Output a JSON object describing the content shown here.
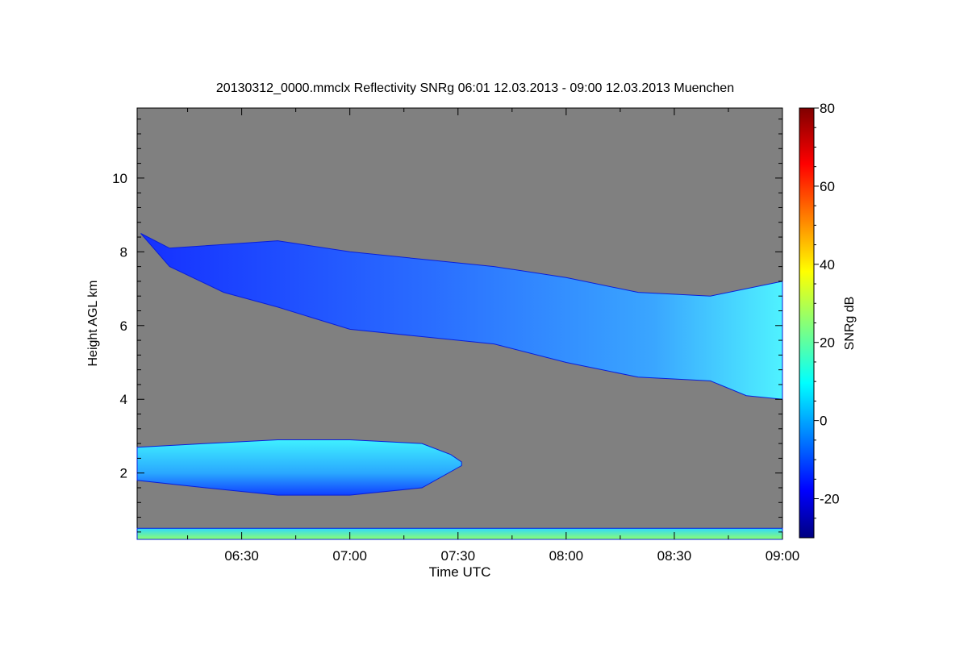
{
  "chart_data": {
    "type": "heatmap",
    "title": "20130312_0000.mmclx Reflectivity SNRg   06:01 12.03.2013 - 09:00 12.03.2013 Muenchen",
    "xlabel": "Time UTC",
    "ylabel": "Height AGL km",
    "x_ticks": [
      "06:30",
      "07:00",
      "07:30",
      "08:00",
      "08:30",
      "09:00"
    ],
    "x_tick_minutes": [
      390,
      420,
      450,
      480,
      510,
      540
    ],
    "xlim_minutes": [
      361,
      540
    ],
    "y_ticks": [
      "2",
      "4",
      "6",
      "8",
      "10"
    ],
    "y_tick_values": [
      2,
      4,
      6,
      8,
      10
    ],
    "ylim": [
      0.2,
      11.9
    ],
    "background_color": "#808080",
    "colorbar": {
      "label": "SNRg dB",
      "ticks": [
        "-20",
        "0",
        "20",
        "40",
        "60",
        "80"
      ],
      "tick_values": [
        -20,
        0,
        20,
        40,
        60,
        80
      ],
      "range": [
        -30,
        80
      ],
      "colormap": "jet"
    },
    "features": [
      {
        "name": "upper cloud layer",
        "top_km": [
          [
            362,
            8.5
          ],
          [
            370,
            8.1
          ],
          [
            385,
            8.2
          ],
          [
            400,
            8.3
          ],
          [
            420,
            8.0
          ],
          [
            440,
            7.8
          ],
          [
            460,
            7.6
          ],
          [
            480,
            7.3
          ],
          [
            500,
            6.9
          ],
          [
            520,
            6.8
          ],
          [
            540,
            7.2
          ]
        ],
        "base_km": [
          [
            370,
            7.6
          ],
          [
            385,
            6.9
          ],
          [
            400,
            6.5
          ],
          [
            420,
            5.9
          ],
          [
            440,
            5.7
          ],
          [
            460,
            5.5
          ],
          [
            480,
            5.0
          ],
          [
            500,
            4.6
          ],
          [
            520,
            4.5
          ],
          [
            530,
            4.1
          ],
          [
            540,
            4.0
          ]
        ],
        "peak_snr_db": 10
      },
      {
        "name": "lower cloud layer",
        "top_km": [
          [
            361,
            2.7
          ],
          [
            380,
            2.8
          ],
          [
            400,
            2.9
          ],
          [
            420,
            2.9
          ],
          [
            440,
            2.8
          ],
          [
            448,
            2.5
          ],
          [
            451,
            2.3
          ]
        ],
        "base_km": [
          [
            361,
            1.8
          ],
          [
            380,
            1.6
          ],
          [
            400,
            1.4
          ],
          [
            420,
            1.4
          ],
          [
            440,
            1.6
          ],
          [
            451,
            2.2
          ]
        ],
        "peak_snr_db": 15
      },
      {
        "name": "near-surface echo",
        "top_km": [
          [
            361,
            0.5
          ],
          [
            540,
            0.5
          ]
        ],
        "base_km": [
          [
            361,
            0.2
          ],
          [
            540,
            0.2
          ]
        ],
        "peak_snr_db": 25
      }
    ]
  }
}
